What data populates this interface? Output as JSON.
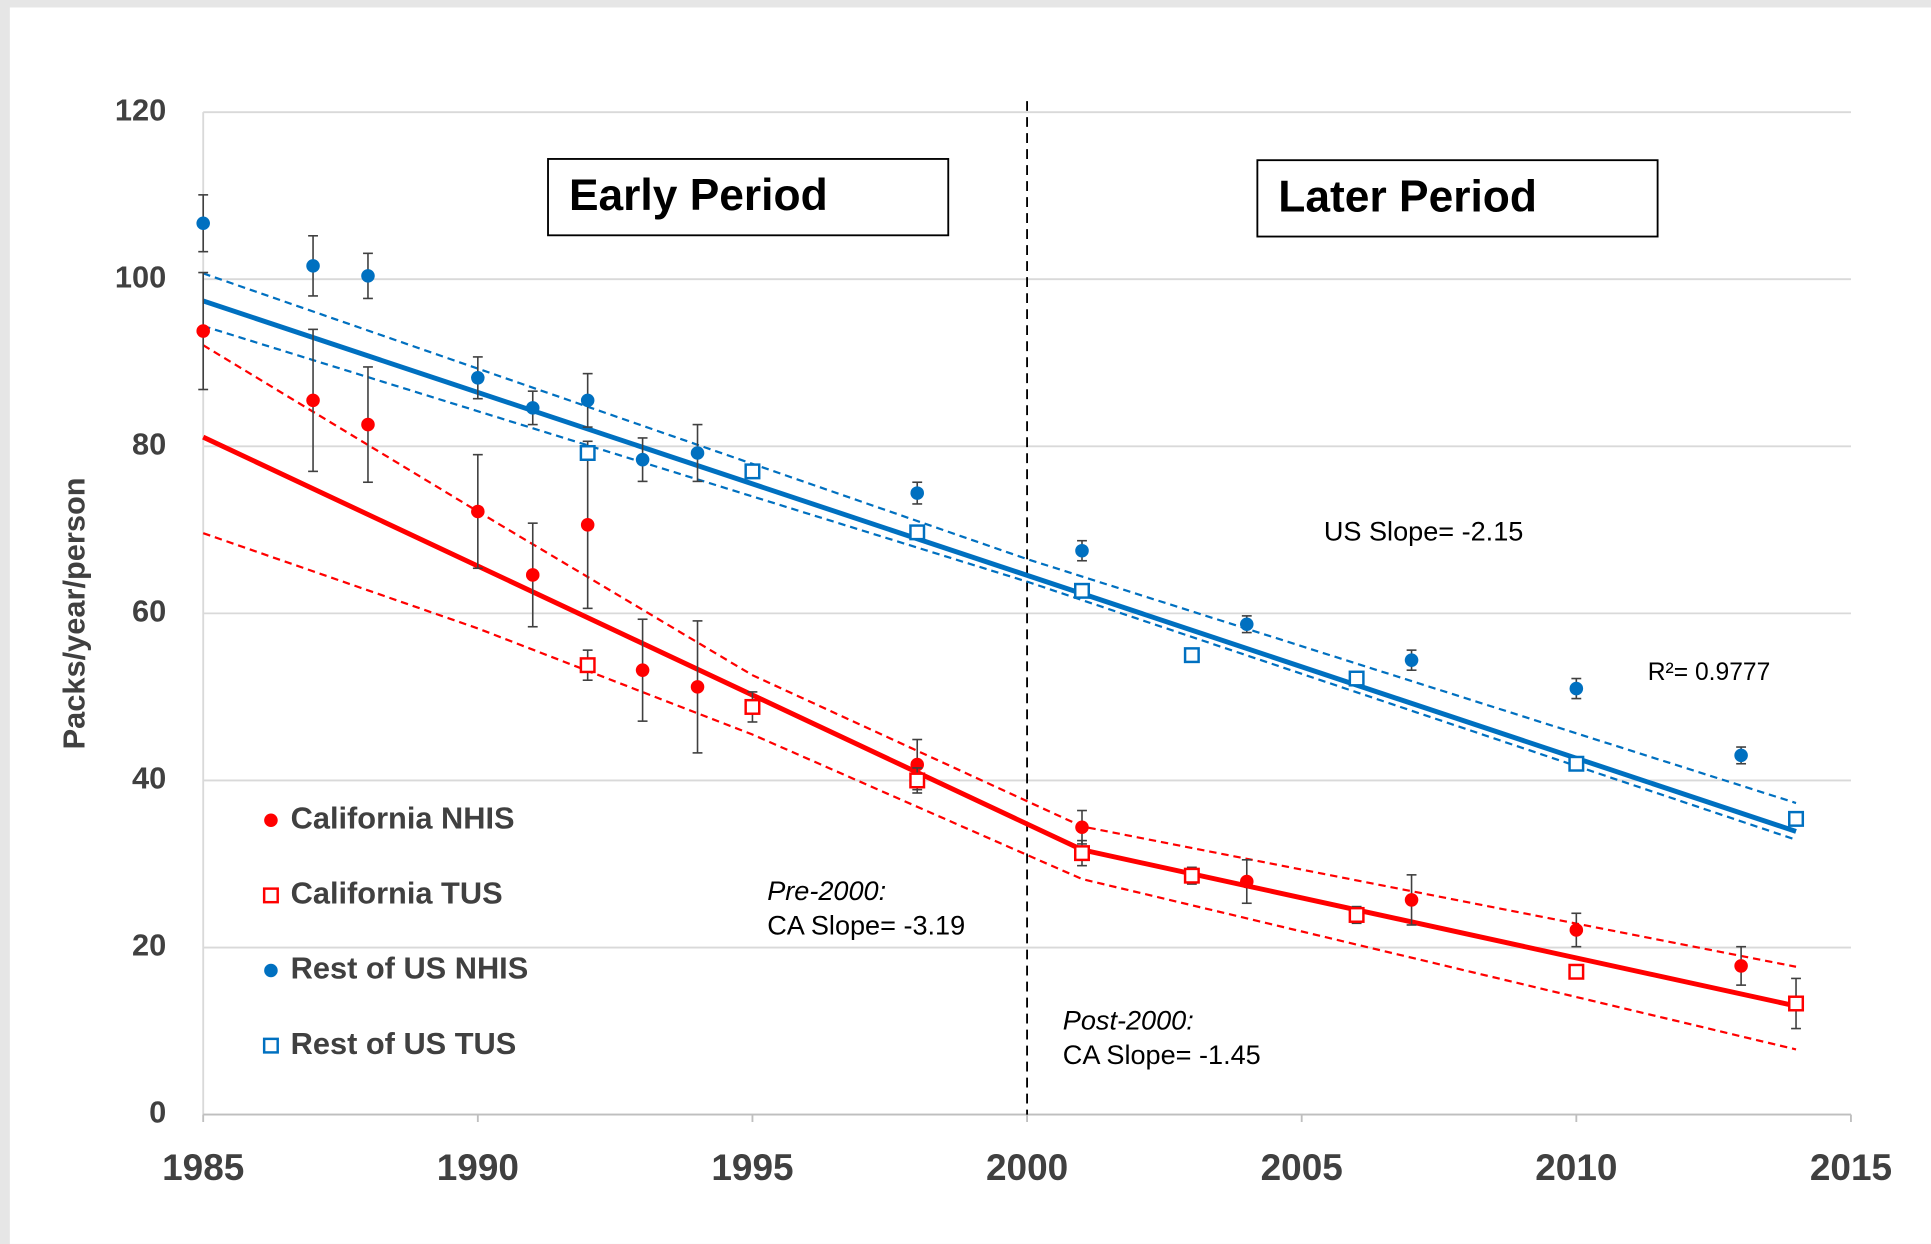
{
  "chart_data": {
    "type": "scatter",
    "y_label": "Packs/year/person",
    "xlim": [
      1985,
      2015
    ],
    "ylim": [
      0,
      120
    ],
    "xticks": [
      1985,
      1990,
      1995,
      2000,
      2005,
      2010,
      2015
    ],
    "yticks": [
      0,
      20,
      40,
      60,
      80,
      100,
      120
    ],
    "grid": true,
    "divider_x": 2000,
    "series": [
      {
        "name": "California NHIS",
        "color": "#ff0000",
        "marker": "circle",
        "x": [
          1985,
          1987,
          1988,
          1990,
          1991,
          1992,
          1993,
          1994,
          1998,
          2001,
          2004,
          2007,
          2010,
          2013
        ],
        "values": [
          93.8,
          85.5,
          82.6,
          72.2,
          64.6,
          70.6,
          53.2,
          51.2,
          41.9,
          34.4,
          27.9,
          25.7,
          22.1,
          17.8
        ],
        "errors": [
          7,
          8.5,
          6.9,
          6.8,
          6.2,
          10,
          6.1,
          7.9,
          3,
          2,
          2.6,
          3,
          2,
          2.3
        ]
      },
      {
        "name": "California TUS",
        "color": "#ff0000",
        "marker": "square",
        "x": [
          1992,
          1995,
          1998,
          2001,
          2003,
          2006,
          2010,
          2014
        ],
        "values": [
          53.8,
          48.8,
          40.0,
          31.3,
          28.6,
          23.9,
          17.1,
          13.3
        ],
        "errors": [
          1.8,
          1.8,
          1.5,
          1.5,
          1,
          1,
          0.8,
          3
        ]
      },
      {
        "name": "Rest of US NHIS",
        "color": "#0070c0",
        "marker": "circle",
        "x": [
          1985,
          1987,
          1988,
          1990,
          1991,
          1992,
          1993,
          1994,
          1998,
          2001,
          2004,
          2007,
          2010,
          2013
        ],
        "values": [
          106.7,
          101.6,
          100.4,
          88.2,
          84.6,
          85.5,
          78.4,
          79.2,
          74.4,
          67.5,
          58.7,
          54.4,
          51.0,
          43.0
        ],
        "errors": [
          3.4,
          3.6,
          2.7,
          2.5,
          2,
          3.2,
          2.6,
          3.4,
          1.3,
          1.2,
          1,
          1.2,
          1.2,
          1
        ]
      },
      {
        "name": "Rest of US TUS",
        "color": "#0070c0",
        "marker": "square",
        "x": [
          1992,
          1995,
          1998,
          2001,
          2003,
          2006,
          2010,
          2014
        ],
        "values": [
          79.2,
          77.0,
          69.7,
          62.7,
          55.0,
          52.2,
          42.0,
          35.4
        ]
      }
    ],
    "fits": [
      {
        "color": "#0070c0",
        "style": "solid",
        "x": [
          1985,
          2014
        ],
        "values": [
          97.4,
          33.9
        ]
      },
      {
        "color": "#0070c0",
        "style": "dashed",
        "x": [
          1985,
          2000,
          2014
        ],
        "values": [
          100.7,
          66.5,
          37.3
        ]
      },
      {
        "color": "#0070c0",
        "style": "dashed",
        "x": [
          1985,
          2000,
          2014
        ],
        "values": [
          94.4,
          63.8,
          32.9
        ]
      },
      {
        "color": "#ff0000",
        "style": "solid",
        "x": [
          1985,
          2001,
          2014
        ],
        "values": [
          81.1,
          31.7,
          13.0
        ]
      },
      {
        "color": "#ff0000",
        "style": "dashed",
        "x": [
          1985,
          1990,
          1995,
          2001,
          2014
        ],
        "values": [
          92.1,
          72.2,
          52.6,
          34.5,
          17.7
        ]
      },
      {
        "color": "#ff0000",
        "style": "dashed",
        "x": [
          1985,
          1990,
          1995,
          2001,
          2014
        ],
        "values": [
          69.6,
          58.2,
          45.5,
          28.2,
          7.8
        ]
      }
    ],
    "period_labels": [
      "Early Period",
      "Later Period"
    ],
    "annotations": [
      "US Slope= -2.15",
      "R²= 0.9777",
      "Pre-2000:",
      "CA Slope= -3.19",
      "Post-2000:",
      "CA Slope= -1.45"
    ]
  }
}
